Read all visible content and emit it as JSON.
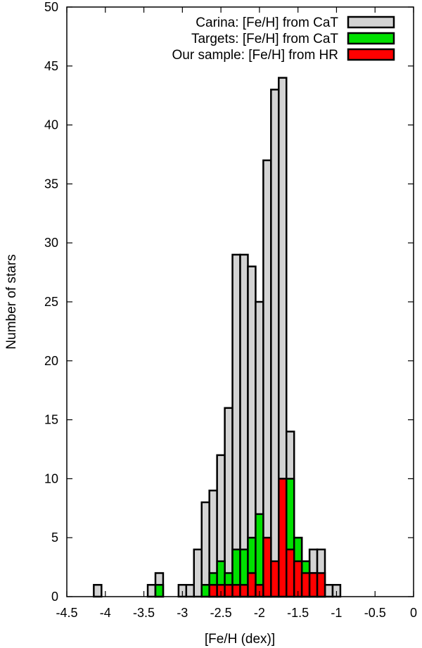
{
  "chart_data": {
    "type": "bar",
    "title": "",
    "xlabel": "[Fe/H (dex)]",
    "ylabel": "Number of stars",
    "xlim": [
      -4.5,
      0
    ],
    "ylim": [
      0,
      50
    ],
    "bin_width": 0.1,
    "x_ticks": [
      "-4.5",
      "-4",
      "-3.5",
      "-3",
      "-2.5",
      "-2",
      "-1.5",
      "-1",
      "-0.5",
      "0"
    ],
    "y_ticks": [
      "0",
      "5",
      "10",
      "15",
      "20",
      "25",
      "30",
      "35",
      "40",
      "45",
      "50"
    ],
    "legend_position": "top-right",
    "grid": false,
    "series": [
      {
        "name": "Carina: [Fe/H] from CaT",
        "color": "#d3d3d3",
        "x": [
          -4.1,
          -3.4,
          -3.3,
          -3.0,
          -2.9,
          -2.8,
          -2.7,
          -2.6,
          -2.5,
          -2.4,
          -2.3,
          -2.2,
          -2.1,
          -2.0,
          -1.9,
          -1.8,
          -1.7,
          -1.6,
          -1.5,
          -1.4,
          -1.3,
          -1.2,
          -1.1,
          -1.0
        ],
        "values": [
          1,
          1,
          2,
          1,
          1,
          4,
          8,
          9,
          12,
          16,
          29,
          29,
          28,
          25,
          37,
          43,
          44,
          14,
          5,
          3,
          4,
          4,
          1,
          1
        ]
      },
      {
        "name": "Targets: [Fe/H] from CaT",
        "color": "#00e000",
        "x": [
          -3.3,
          -2.7,
          -2.6,
          -2.5,
          -2.4,
          -2.3,
          -2.2,
          -2.1,
          -2.0,
          -1.9,
          -1.8,
          -1.7,
          -1.6,
          -1.5,
          -1.4,
          -1.3,
          -1.2
        ],
        "values": [
          1,
          1,
          2,
          3,
          2,
          4,
          4,
          5,
          7,
          1,
          2,
          10,
          10,
          5,
          3,
          2,
          1
        ]
      },
      {
        "name": "Our sample: [Fe/H] from HR",
        "color": "#ff0000",
        "x": [
          -2.6,
          -2.5,
          -2.4,
          -2.3,
          -2.2,
          -2.1,
          -2.0,
          -1.9,
          -1.8,
          -1.7,
          -1.6,
          -1.5,
          -1.4,
          -1.3,
          -1.2
        ],
        "values": [
          1,
          1,
          1,
          1,
          1,
          2,
          1,
          5,
          3,
          10,
          4,
          3,
          2,
          2,
          2
        ]
      }
    ]
  }
}
